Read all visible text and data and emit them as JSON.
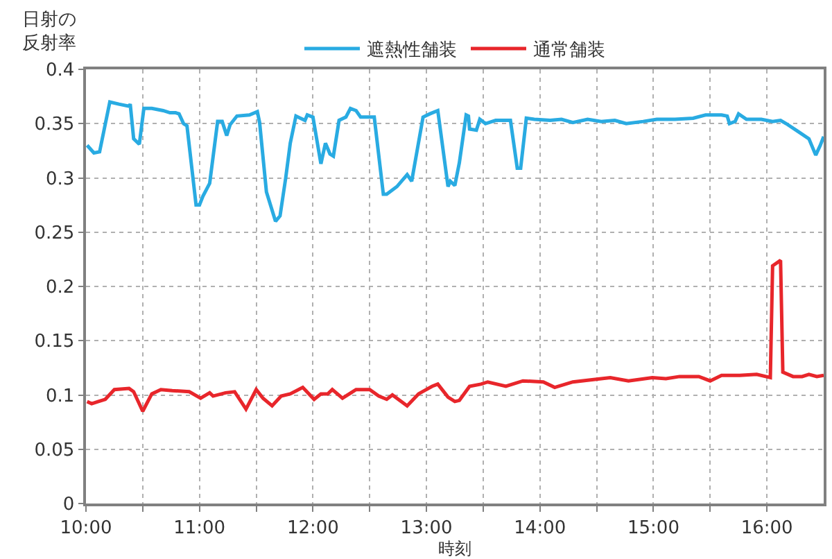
{
  "chart_data": {
    "type": "line",
    "xlabel": "時刻",
    "ylabel": "日射の反射率",
    "x": [
      10.01,
      10.07,
      10.12,
      10.21,
      10.29,
      10.38,
      10.39,
      10.42,
      10.47,
      10.51,
      10.58,
      10.68,
      10.74,
      10.79,
      10.82,
      10.86,
      10.89,
      10.97,
      11.0,
      11.03,
      11.09,
      11.16,
      11.2,
      11.24,
      11.27,
      11.33,
      11.44,
      11.51,
      11.53,
      11.59,
      11.67,
      11.71,
      11.76,
      11.8,
      11.85,
      11.89,
      11.93,
      11.95,
      12.0,
      12.07,
      12.11,
      12.15,
      12.18,
      12.23,
      12.29,
      12.33,
      12.38,
      12.42,
      12.54,
      12.62,
      12.65,
      12.74,
      12.83,
      12.87,
      12.97,
      13.03,
      13.1,
      13.19,
      13.21,
      13.25,
      13.29,
      13.35,
      13.37,
      13.38,
      13.44,
      13.47,
      13.52,
      13.61,
      13.67,
      13.74,
      13.8,
      13.83,
      13.88,
      13.95,
      14.09,
      14.19,
      14.29,
      14.42,
      14.54,
      14.66,
      14.76,
      14.91,
      15.03,
      15.19,
      15.35,
      15.46,
      15.6,
      15.65,
      15.67,
      15.72,
      15.75,
      15.82,
      15.95,
      16.05,
      16.12,
      16.17,
      16.27,
      16.37,
      16.43,
      16.47,
      16.5
    ],
    "series": [
      {
        "name": "遮熱性舗装",
        "color": "#29abe2",
        "values": [
          0.33,
          0.323,
          0.324,
          0.37,
          0.368,
          0.366,
          0.368,
          0.336,
          0.331,
          0.364,
          0.364,
          0.362,
          0.36,
          0.36,
          0.359,
          0.35,
          0.348,
          0.275,
          0.275,
          0.283,
          0.295,
          0.352,
          0.352,
          0.339,
          0.349,
          0.357,
          0.358,
          0.361,
          0.351,
          0.287,
          0.26,
          0.265,
          0.3,
          0.332,
          0.357,
          0.355,
          0.353,
          0.358,
          0.356,
          0.313,
          0.332,
          0.322,
          0.32,
          0.353,
          0.356,
          0.364,
          0.362,
          0.356,
          0.356,
          0.285,
          0.285,
          0.292,
          0.303,
          0.297,
          0.356,
          0.359,
          0.362,
          0.292,
          0.297,
          0.293,
          0.314,
          0.358,
          0.357,
          0.345,
          0.344,
          0.354,
          0.35,
          0.353,
          0.353,
          0.353,
          0.309,
          0.309,
          0.355,
          0.354,
          0.353,
          0.354,
          0.351,
          0.354,
          0.352,
          0.353,
          0.35,
          0.352,
          0.354,
          0.354,
          0.355,
          0.358,
          0.358,
          0.357,
          0.35,
          0.352,
          0.359,
          0.354,
          0.354,
          0.352,
          0.353,
          0.35,
          0.343,
          0.336,
          0.321,
          0.33,
          0.338
        ]
      },
      {
        "name": "通常舗装",
        "color": "#e8262b",
        "x": [
          10.01,
          10.05,
          10.11,
          10.17,
          10.25,
          10.38,
          10.42,
          10.5,
          10.58,
          10.66,
          10.76,
          10.91,
          11.01,
          11.09,
          11.12,
          11.23,
          11.31,
          11.41,
          11.5,
          11.56,
          11.64,
          11.72,
          11.8,
          11.91,
          12.01,
          12.07,
          12.13,
          12.17,
          12.26,
          12.38,
          12.5,
          12.58,
          12.65,
          12.7,
          12.83,
          12.93,
          13.05,
          13.1,
          13.19,
          13.25,
          13.29,
          13.38,
          13.48,
          13.54,
          13.7,
          13.85,
          14.03,
          14.13,
          14.29,
          14.46,
          14.62,
          14.78,
          14.99,
          15.11,
          15.23,
          15.4,
          15.5,
          15.6,
          15.76,
          15.91,
          16.03,
          16.05,
          16.12,
          16.14,
          16.23,
          16.31,
          16.37,
          16.44,
          16.5
        ],
        "values": [
          0.094,
          0.092,
          0.094,
          0.096,
          0.105,
          0.106,
          0.103,
          0.085,
          0.101,
          0.105,
          0.104,
          0.103,
          0.097,
          0.102,
          0.099,
          0.102,
          0.103,
          0.087,
          0.105,
          0.097,
          0.09,
          0.099,
          0.101,
          0.107,
          0.096,
          0.101,
          0.101,
          0.105,
          0.097,
          0.105,
          0.105,
          0.099,
          0.096,
          0.1,
          0.09,
          0.101,
          0.108,
          0.11,
          0.098,
          0.094,
          0.095,
          0.108,
          0.11,
          0.112,
          0.108,
          0.113,
          0.112,
          0.107,
          0.112,
          0.114,
          0.116,
          0.113,
          0.116,
          0.115,
          0.117,
          0.117,
          0.113,
          0.118,
          0.118,
          0.119,
          0.116,
          0.219,
          0.224,
          0.121,
          0.117,
          0.117,
          0.119,
          0.117,
          0.118
        ]
      }
    ],
    "xlim": [
      10,
      16.5
    ],
    "xticks": [
      {
        "value": 10,
        "label": "10:00"
      },
      {
        "value": 10.5,
        "label": null
      },
      {
        "value": 11,
        "label": "11:00"
      },
      {
        "value": 11.5,
        "label": null
      },
      {
        "value": 12,
        "label": "12:00"
      },
      {
        "value": 12.5,
        "label": null
      },
      {
        "value": 13,
        "label": "13:00"
      },
      {
        "value": 13.5,
        "label": null
      },
      {
        "value": 14,
        "label": "14:00"
      },
      {
        "value": 14.5,
        "label": null
      },
      {
        "value": 15,
        "label": "15:00"
      },
      {
        "value": 15.5,
        "label": null
      },
      {
        "value": 16,
        "label": "16:00"
      }
    ],
    "ylim": [
      0,
      0.4
    ],
    "yticks": [
      0,
      0.05,
      0.1,
      0.15,
      0.2,
      0.25,
      0.3,
      0.35,
      0.4
    ],
    "grid": true,
    "legend": "top",
    "marker": "none",
    "line_style": "solid"
  }
}
